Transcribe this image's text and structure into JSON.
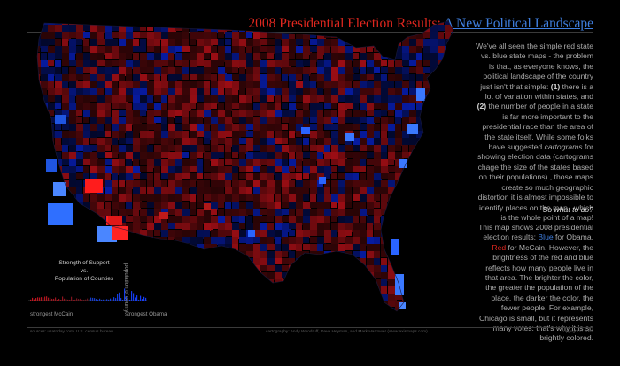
{
  "title": {
    "red_part": "2008 Presidential Election Results",
    "separator": ":",
    "blue_part": "A New Political Landscape"
  },
  "intro": {
    "before_1": "We've all seen  the simple red state vs. blue state maps - the problem is that, as everyone knows, the political landscape of the country just isn't that simple: ",
    "marker_1": "(1)",
    "between": " there is a lot of variation within states, and ",
    "marker_2": "(2)",
    "after_2_a": " the number of people in a state is far more important to the presidential race than the area of the state itself. While some folks have suggested ",
    "cartograms": "cartograms",
    "after_2_b": " for showing  election data (cartograms chage the size of the states based on their populations) , those maps  create so much geographic distortion it is almost impossible to identify places on the map...which is the whole point of a map!"
  },
  "question": "So what to do?",
  "explain": {
    "a": "This  map shows 2008 presidential election results: ",
    "blue_word": "Blue",
    "b": " for Obama, ",
    "red_word": "Red",
    "c": " for McCain.  However, the brightness of the red and blue reflects how many people live in  that area.  The brighter the color, the greater the population of the place, the darker the color, the fewer people. For example, Chicago is small, but it represents many votes: that's why it is so brightly colored."
  },
  "legend": {
    "title_line1": "Strength of Support",
    "title_line2": "vs.",
    "title_line3": "Population of Counties",
    "left_label": "strongest McCain",
    "right_label": "strongest Obama",
    "axis_label": "population of county"
  },
  "footer": {
    "sources": "sources: usatoday.com, U.S. census bureau",
    "cartography": "cartography:  Andy Woodruff, Dave Heyman, and Mark Harrower (www.axismaps.com)",
    "copyright": "copyright © 2008"
  },
  "colors": {
    "background": "#000000",
    "obama_blue": "#3f7fe0",
    "mccain_red": "#e0271f",
    "text_gray": "#a9a9a9"
  }
}
